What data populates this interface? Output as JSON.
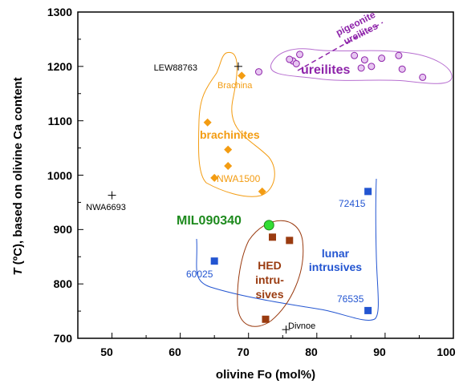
{
  "chart_data": {
    "type": "scatter",
    "xlabel": "olivine Fo (mol%)",
    "ylabel_italic": "T",
    "ylabel_rest": " (ºC), based on olivine Ca content",
    "xlim": [
      45,
      100
    ],
    "ylim": [
      700,
      1300
    ],
    "x_ticks": [
      "50",
      "60",
      "70",
      "80",
      "90",
      "100"
    ],
    "y_ticks": [
      "700",
      "800",
      "900",
      "1000",
      "1100",
      "1200",
      "1300"
    ],
    "grid": false,
    "colors": {
      "brachinites": "#f39c12",
      "ureilites": "#8e24aa",
      "lunar": "#2355d1",
      "hed": "#9a3b10",
      "mil": "#33dd33",
      "mil_label": "#1e8a1e",
      "other": "#000000"
    },
    "series": [
      {
        "name": "brachinites",
        "marker": "diamond",
        "points": [
          [
            69,
            1183
          ],
          [
            64,
            1097
          ],
          [
            67,
            1047
          ],
          [
            67,
            1017
          ],
          [
            65,
            995
          ],
          [
            72,
            970
          ]
        ]
      },
      {
        "name": "ureilites",
        "marker": "circle",
        "points": [
          [
            76.5,
            1210
          ],
          [
            77,
            1205
          ],
          [
            77.5,
            1222
          ],
          [
            85.5,
            1220
          ],
          [
            87,
            1212
          ],
          [
            89.5,
            1215
          ],
          [
            92,
            1220
          ],
          [
            76,
            1213
          ],
          [
            86.5,
            1197
          ],
          [
            88,
            1200
          ],
          [
            92.5,
            1195
          ],
          [
            95.5,
            1180
          ],
          [
            71.5,
            1190
          ]
        ]
      },
      {
        "name": "lunar intrusives",
        "marker": "square",
        "points": [
          [
            87.5,
            970
          ],
          [
            65,
            842
          ],
          [
            87.5,
            751
          ]
        ]
      },
      {
        "name": "HED intrusives",
        "marker": "square",
        "points": [
          [
            73.5,
            886
          ],
          [
            76,
            880
          ],
          [
            72.5,
            735
          ]
        ]
      },
      {
        "name": "MIL 090340",
        "marker": "circle",
        "points": [
          [
            73,
            908
          ]
        ]
      },
      {
        "name": "other",
        "marker": "plus",
        "points": [
          [
            50,
            963
          ],
          [
            68.5,
            1200
          ],
          [
            75.5,
            716
          ]
        ]
      }
    ],
    "point_labels": [
      {
        "text": "LEW88763",
        "x": 68.5,
        "y": 1200
      },
      {
        "text": "Brachina",
        "x": 69,
        "y": 1183
      },
      {
        "text": "NWA1500",
        "x": 65,
        "y": 995
      },
      {
        "text": "NWA6693",
        "x": 50,
        "y": 963
      },
      {
        "text": "72415",
        "x": 87.5,
        "y": 970
      },
      {
        "text": "60025",
        "x": 65,
        "y": 842
      },
      {
        "text": "76535",
        "x": 87.5,
        "y": 751
      },
      {
        "text": "Divnoe",
        "x": 75.5,
        "y": 716
      }
    ],
    "group_labels": {
      "brachinites": "brachinites",
      "ureilites": "ureilites",
      "pigeonite_line1": "pigeonite",
      "pigeonite_line2": "ureilites",
      "lunar_line1": "lunar",
      "lunar_line2": "intrusives",
      "hed_line1": "HED",
      "hed_line2": "intru-",
      "hed_line3": "sives",
      "mil": "MIL090340"
    }
  }
}
